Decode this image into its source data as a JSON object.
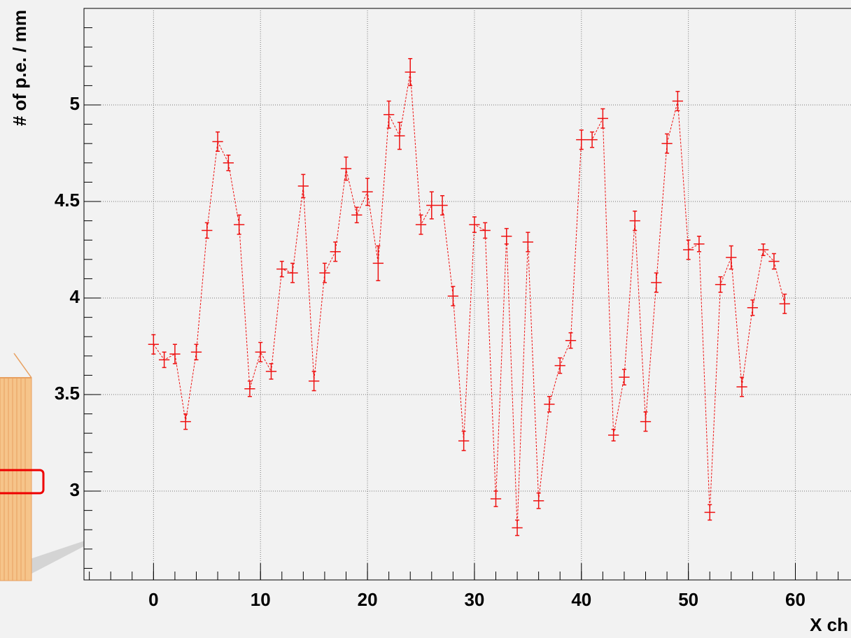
{
  "chart_data": {
    "type": "errorbar",
    "ylabel": "# of p.e. / mm",
    "xlabel": "X ch",
    "x": [
      0,
      1,
      2,
      3,
      4,
      5,
      6,
      7,
      8,
      9,
      10,
      11,
      12,
      13,
      14,
      15,
      16,
      17,
      18,
      19,
      20,
      21,
      22,
      23,
      24,
      25,
      26,
      27,
      28,
      29,
      30,
      31,
      32,
      33,
      34,
      35,
      36,
      37,
      38,
      39,
      40,
      41,
      42,
      43,
      44,
      45,
      46,
      47,
      48,
      49,
      50,
      51,
      52,
      53,
      54,
      55,
      56,
      57,
      58,
      59
    ],
    "values": [
      3.76,
      3.68,
      3.71,
      3.36,
      3.72,
      4.35,
      4.81,
      4.7,
      4.38,
      3.53,
      3.72,
      3.62,
      4.15,
      4.13,
      4.58,
      3.57,
      4.13,
      4.24,
      4.67,
      4.43,
      4.55,
      4.18,
      4.95,
      4.84,
      5.17,
      4.38,
      4.48,
      4.48,
      4.01,
      3.26,
      4.38,
      4.35,
      2.96,
      4.32,
      2.81,
      4.29,
      2.95,
      3.45,
      3.65,
      3.78,
      4.82,
      4.82,
      4.93,
      3.29,
      3.59,
      4.4,
      3.36,
      4.08,
      4.8,
      5.02,
      4.25,
      4.28,
      2.89,
      4.07,
      4.21,
      3.54,
      3.95,
      4.25,
      4.19,
      3.97
    ],
    "errors": [
      0.05,
      0.04,
      0.05,
      0.04,
      0.04,
      0.04,
      0.05,
      0.04,
      0.05,
      0.04,
      0.05,
      0.04,
      0.04,
      0.05,
      0.06,
      0.05,
      0.05,
      0.05,
      0.06,
      0.04,
      0.07,
      0.09,
      0.07,
      0.07,
      0.07,
      0.05,
      0.07,
      0.05,
      0.05,
      0.05,
      0.04,
      0.04,
      0.04,
      0.04,
      0.04,
      0.05,
      0.04,
      0.04,
      0.04,
      0.04,
      0.05,
      0.04,
      0.05,
      0.03,
      0.04,
      0.05,
      0.05,
      0.05,
      0.05,
      0.05,
      0.05,
      0.04,
      0.04,
      0.04,
      0.06,
      0.05,
      0.04,
      0.03,
      0.04,
      0.05
    ],
    "xerr": 0.5,
    "color": "#ee1111",
    "xlim": [
      -6.5,
      65.2
    ],
    "ylim": [
      2.54,
      5.5
    ],
    "xticks": [
      0,
      10,
      20,
      30,
      40,
      50,
      60
    ],
    "yticks": [
      3,
      3.5,
      4,
      4.5,
      5
    ],
    "grid": true
  }
}
